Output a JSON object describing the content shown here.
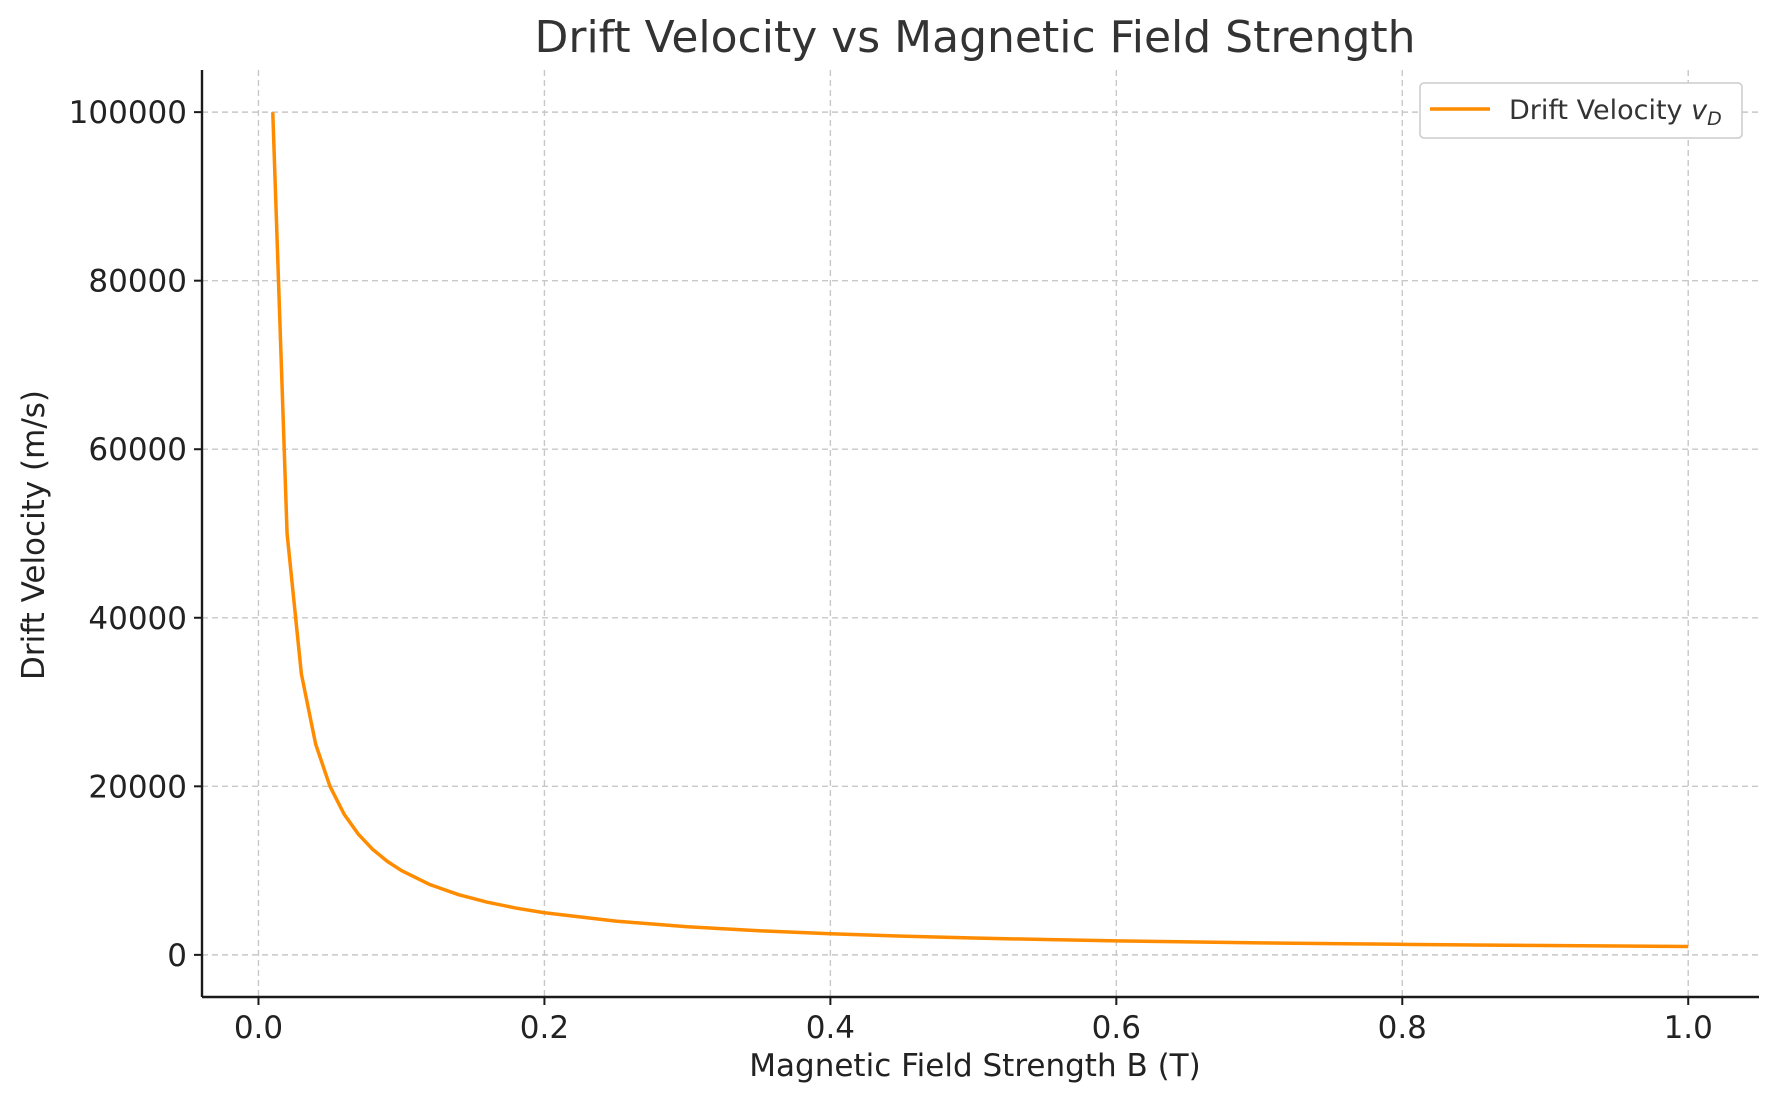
{
  "chart_data": {
    "type": "line",
    "title": "Drift Velocity vs Magnetic Field Strength",
    "xlabel": "Magnetic Field Strength B (T)",
    "ylabel": "Drift Velocity (m/s)",
    "xlim": [
      -0.0395,
      1.0495
    ],
    "ylim": [
      -5000,
      105000
    ],
    "x_ticks": [
      0.0,
      0.2,
      0.4,
      0.6,
      0.8,
      1.0
    ],
    "x_tick_labels": [
      "0.0",
      "0.2",
      "0.4",
      "0.6",
      "0.8",
      "1.0"
    ],
    "y_ticks": [
      0,
      20000,
      40000,
      60000,
      80000,
      100000
    ],
    "y_tick_labels": [
      "0",
      "20000",
      "40000",
      "60000",
      "80000",
      "100000"
    ],
    "grid": true,
    "legend_position": "top-right",
    "series": [
      {
        "name": "Drift Velocity v_D",
        "legend_label_main": "Drift Velocity ",
        "legend_label_symbol": "v",
        "legend_label_subscript": "D",
        "color": "#ff8c00",
        "x": [
          0.01,
          0.02,
          0.03,
          0.04,
          0.05,
          0.06,
          0.07,
          0.08,
          0.09,
          0.1,
          0.12,
          0.14,
          0.16,
          0.18,
          0.2,
          0.25,
          0.3,
          0.35,
          0.4,
          0.45,
          0.5,
          0.55,
          0.6,
          0.65,
          0.7,
          0.75,
          0.8,
          0.85,
          0.9,
          0.95,
          1.0
        ],
        "y": [
          100000,
          50000,
          33333,
          25000,
          20000,
          16667,
          14286,
          12500,
          11111,
          10000,
          8333,
          7143,
          6250,
          5556,
          5000,
          4000,
          3333,
          2857,
          2500,
          2222,
          2000,
          1818,
          1667,
          1538,
          1429,
          1333,
          1250,
          1176,
          1111,
          1053,
          1000
        ]
      }
    ]
  }
}
